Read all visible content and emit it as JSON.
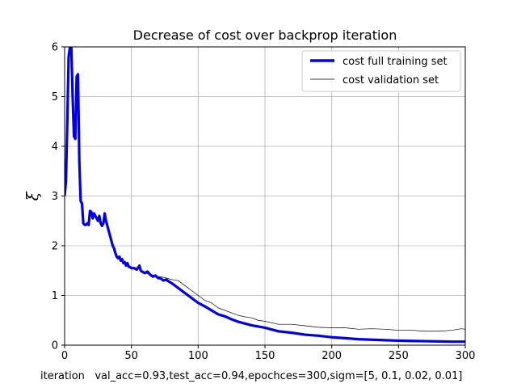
{
  "chart_data": {
    "type": "line",
    "title": "Decrease of cost over backprop iteration",
    "xlabel": "iteration   val_acc=0.93,test_acc=0.94,epochces=300,sigm=[5, 0.1, 0.02, 0.01]",
    "ylabel": "ξ",
    "xlim": [
      0,
      300
    ],
    "ylim": [
      0,
      6
    ],
    "xticks": [
      "0",
      "50",
      "100",
      "150",
      "200",
      "250",
      "300"
    ],
    "yticks": [
      "0",
      "1",
      "2",
      "3",
      "4",
      "5",
      "6"
    ],
    "grid": true,
    "legend_position": "top-right",
    "series": [
      {
        "name": "cost full training set",
        "color": "#0000ee",
        "style": "thick",
        "x": [
          0,
          1,
          2,
          3,
          4,
          5,
          6,
          7,
          8,
          9,
          10,
          11,
          12,
          13,
          14,
          15,
          16,
          17,
          18,
          19,
          20,
          21,
          22,
          23,
          24,
          25,
          26,
          27,
          28,
          29,
          30,
          31,
          32,
          33,
          34,
          35,
          36,
          37,
          38,
          39,
          40,
          41,
          42,
          43,
          44,
          45,
          46,
          47,
          48,
          49,
          50,
          52,
          54,
          56,
          57,
          58,
          60,
          62,
          64,
          66,
          68,
          70,
          72,
          74,
          76,
          78,
          80,
          85,
          90,
          95,
          100,
          105,
          110,
          115,
          120,
          125,
          130,
          140,
          150,
          160,
          170,
          180,
          190,
          200,
          210,
          220,
          230,
          240,
          250,
          260,
          270,
          280,
          290,
          300
        ],
        "y": [
          3.0,
          3.3,
          4.5,
          5.8,
          6.0,
          6.0,
          5.0,
          4.2,
          4.15,
          5.4,
          5.45,
          3.7,
          2.9,
          2.85,
          2.45,
          2.42,
          2.42,
          2.45,
          2.42,
          2.7,
          2.68,
          2.55,
          2.65,
          2.6,
          2.55,
          2.5,
          2.6,
          2.45,
          2.4,
          2.45,
          2.65,
          2.5,
          2.4,
          2.3,
          2.2,
          2.1,
          2.0,
          1.95,
          1.85,
          1.78,
          1.75,
          1.78,
          1.7,
          1.73,
          1.65,
          1.67,
          1.6,
          1.65,
          1.58,
          1.57,
          1.55,
          1.55,
          1.52,
          1.6,
          1.5,
          1.48,
          1.45,
          1.48,
          1.42,
          1.38,
          1.4,
          1.35,
          1.34,
          1.3,
          1.32,
          1.28,
          1.25,
          1.15,
          1.05,
          0.95,
          0.85,
          0.78,
          0.7,
          0.62,
          0.58,
          0.52,
          0.47,
          0.4,
          0.35,
          0.28,
          0.25,
          0.21,
          0.19,
          0.16,
          0.14,
          0.12,
          0.11,
          0.1,
          0.09,
          0.085,
          0.08,
          0.075,
          0.07,
          0.07
        ]
      },
      {
        "name": "cost validation set",
        "color": "#000000",
        "style": "thin",
        "x": [
          60,
          65,
          70,
          75,
          80,
          85,
          90,
          95,
          100,
          105,
          110,
          115,
          120,
          125,
          130,
          135,
          140,
          145,
          150,
          155,
          160,
          170,
          180,
          190,
          200,
          210,
          220,
          230,
          240,
          250,
          260,
          270,
          280,
          290,
          297,
          300
        ],
        "y": [
          1.45,
          1.42,
          1.38,
          1.36,
          1.32,
          1.3,
          1.2,
          1.1,
          1.0,
          0.9,
          0.85,
          0.75,
          0.7,
          0.65,
          0.6,
          0.57,
          0.55,
          0.5,
          0.48,
          0.45,
          0.42,
          0.42,
          0.39,
          0.36,
          0.35,
          0.35,
          0.32,
          0.33,
          0.32,
          0.3,
          0.3,
          0.28,
          0.28,
          0.3,
          0.33,
          0.32
        ]
      }
    ]
  }
}
